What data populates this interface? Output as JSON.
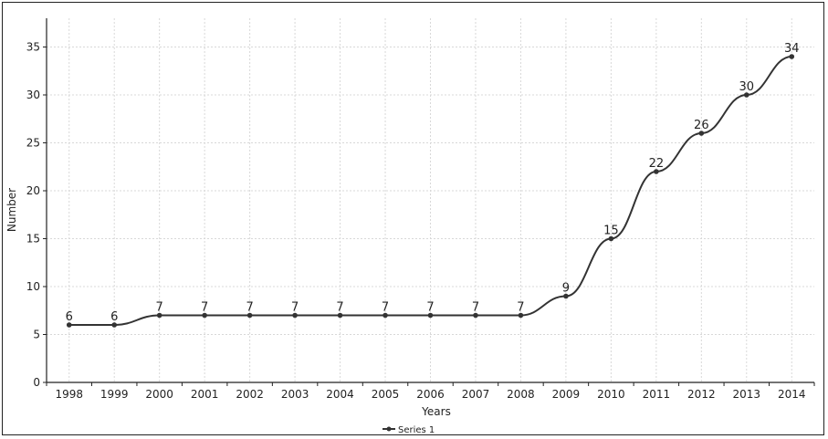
{
  "chart_data": {
    "type": "line",
    "title": "",
    "xlabel": "Years",
    "ylabel": "Number",
    "categories": [
      "1998",
      "1999",
      "2000",
      "2001",
      "2002",
      "2003",
      "2004",
      "2005",
      "2006",
      "2007",
      "2008",
      "2009",
      "2010",
      "2011",
      "2012",
      "2013",
      "2014"
    ],
    "series": [
      {
        "name": "Series 1",
        "values": [
          6,
          6,
          7,
          7,
          7,
          7,
          7,
          7,
          7,
          7,
          7,
          9,
          15,
          22,
          26,
          30,
          34
        ],
        "color": "#333333"
      }
    ],
    "ylim": [
      0,
      38
    ],
    "yticks": [
      0,
      5,
      10,
      15,
      20,
      25,
      30,
      35
    ],
    "grid": true,
    "smooth": true,
    "data_labels": true,
    "legend": "bottom-center"
  }
}
